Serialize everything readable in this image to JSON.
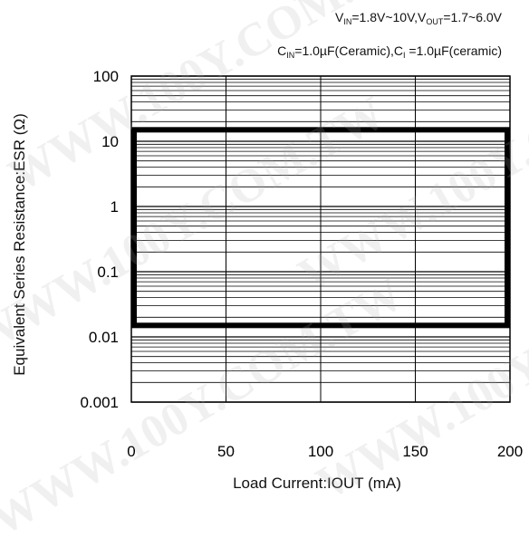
{
  "conditions": {
    "line1": {
      "v1": "V",
      "s1": "IN",
      "t1": "=1.8V~10V,V",
      "s2": "OUT",
      "t2": "=1.7~6.0V"
    },
    "line2": {
      "c1": "C",
      "s1": "IN",
      "t1": "=1.0µF(Ceramic),C",
      "s2": "I",
      "t2": " =1.0µF(ceramic)"
    }
  },
  "watermark": "WWW.100Y.COM.TW",
  "chart_data": {
    "type": "area",
    "title": "",
    "xlabel": "Load Current:IOUT (mA)",
    "ylabel": "Equivalent Series Resistance:ESR (Ω)",
    "xlim": [
      0,
      200
    ],
    "ylim": [
      0.001,
      100
    ],
    "yscale": "log",
    "x_ticks": [
      0,
      50,
      100,
      150,
      200
    ],
    "x_tick_labels": [
      "0",
      "50",
      "100",
      "150",
      "200"
    ],
    "y_ticks": [
      0.001,
      0.01,
      0.1,
      1,
      10,
      100
    ],
    "y_tick_labels": [
      "0.001",
      "0.01",
      "0.1",
      "1",
      "10",
      "100"
    ],
    "grid": true,
    "stable_region": {
      "x": [
        0,
        200
      ],
      "y": [
        0.015,
        15
      ]
    }
  }
}
